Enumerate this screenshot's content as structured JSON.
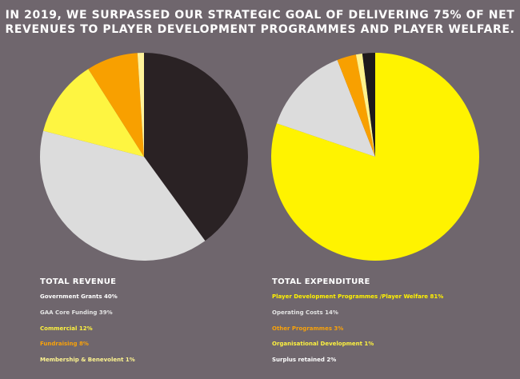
{
  "headline": {
    "line1": "IN 2019, WE SURPASSED OUR STRATEGIC GOAL OF DELIVERING 75% OF NET",
    "line2": "REVENUES TO PLAYER DEVELOPMENT PROGRAMMES AND PLAYER WELFARE."
  },
  "chart_data": [
    {
      "type": "pie",
      "title": "TOTAL REVENUE",
      "slices": [
        {
          "label": "Government Grants",
          "value": 40,
          "legend": "Government Grants 40%",
          "color": "#2a2224",
          "text_color": "#ffffff"
        },
        {
          "label": "GAA Core Funding",
          "value": 39,
          "legend": "GAA Core Funding 39%",
          "color": "#dcdcdc",
          "text_color": "#e3e3e3"
        },
        {
          "label": "Commercial",
          "value": 12,
          "legend": "Commercial 12%",
          "color": "#fef541",
          "text_color": "#fdf23f"
        },
        {
          "label": "Fundraising",
          "value": 8,
          "legend": "Fundraising 8%",
          "color": "#f8a000",
          "text_color": "#f8a20a"
        },
        {
          "label": "Membership & Benevolent",
          "value": 1,
          "legend": "Membership & Benevolent 1%",
          "color": "#fff39a",
          "text_color": "#fdf38f"
        }
      ]
    },
    {
      "type": "pie",
      "title": "TOTAL EXPENDITURE",
      "slices": [
        {
          "label": "Player Development Programmes /Player Welfare",
          "value": 81,
          "legend": "Player Development Programmes /Player Welfare 81%",
          "color": "#fff300",
          "text_color": "#fff200"
        },
        {
          "label": "Operating Costs",
          "value": 14,
          "legend": "Operating Costs 14%",
          "color": "#dcdcdc",
          "text_color": "#e3e3e3"
        },
        {
          "label": "Other Programmes",
          "value": 3,
          "legend": "Other Programmes 3%",
          "color": "#f8a000",
          "text_color": "#f8a20a"
        },
        {
          "label": "Organisational Development",
          "value": 1,
          "legend": "Organisational Development 1%",
          "color": "#fff38c",
          "text_color": "#fdf23f"
        },
        {
          "label": "Surplus retained",
          "value": 2,
          "legend": "Surplus retained 2%",
          "color": "#1e1a1c",
          "text_color": "#ffffff"
        }
      ]
    }
  ]
}
